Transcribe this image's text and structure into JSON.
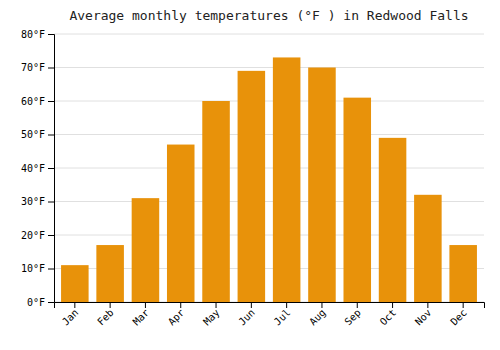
{
  "chart_data": {
    "type": "bar",
    "title": "Average monthly temperatures (°F ) in Redwood Falls",
    "categories": [
      "Jan",
      "Feb",
      "Mar",
      "Apr",
      "May",
      "Jun",
      "Jul",
      "Aug",
      "Sep",
      "Oct",
      "Nov",
      "Dec"
    ],
    "values": [
      11,
      17,
      31,
      47,
      60,
      69,
      73,
      70,
      61,
      49,
      32,
      17
    ],
    "color": "#E8920A",
    "ylim": [
      0,
      80
    ],
    "yticks": [
      {
        "value": 0,
        "label": "0°F"
      },
      {
        "value": 10,
        "label": "10°F"
      },
      {
        "value": 20,
        "label": "20°F"
      },
      {
        "value": 30,
        "label": "30°F"
      },
      {
        "value": 40,
        "label": "40°F"
      },
      {
        "value": 50,
        "label": "50°F"
      },
      {
        "value": 60,
        "label": "60°F"
      },
      {
        "value": 70,
        "label": "70°F"
      },
      {
        "value": 80,
        "label": "80°F"
      }
    ],
    "grid": true
  }
}
